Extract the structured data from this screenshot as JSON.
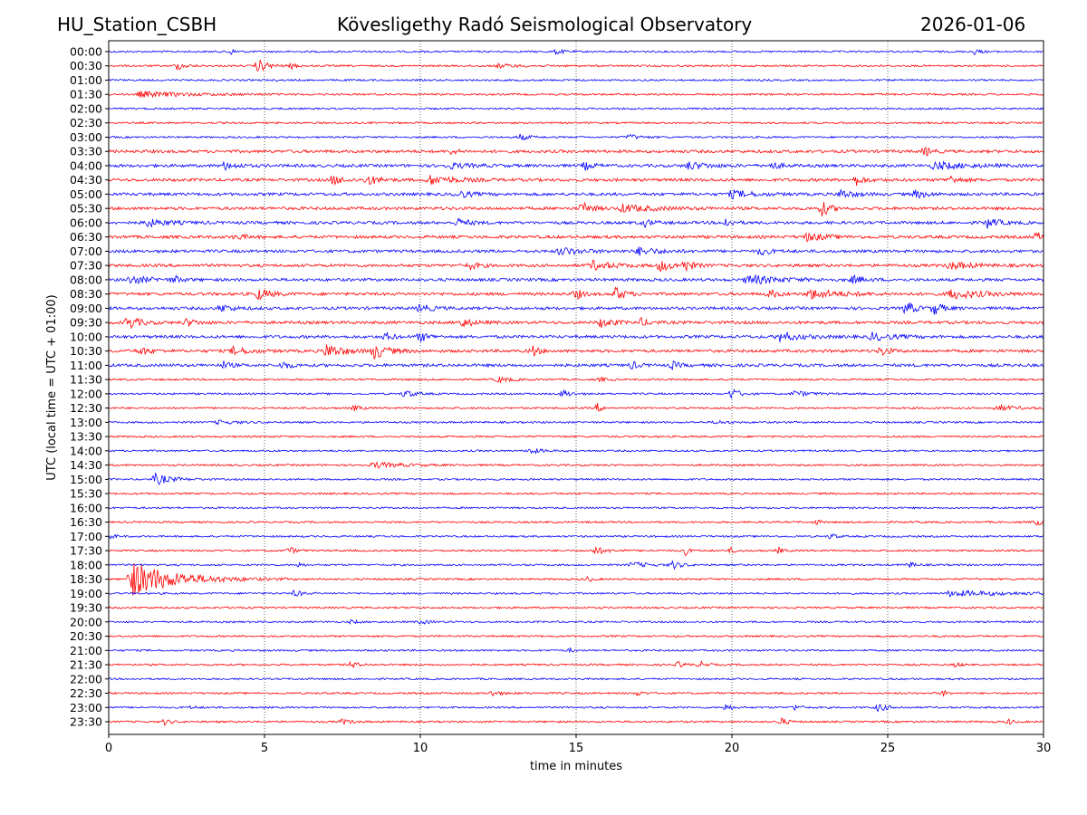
{
  "header": {
    "station": "HU_Station_CSBH",
    "observatory": "Kövesligethy Radó Seismological Observatory",
    "date": "2026-01-06"
  },
  "chart_data": {
    "type": "line",
    "title": "Kövesligethy Radó Seismological Observatory",
    "xlabel": "time in minutes",
    "ylabel": "UTC (local time = UTC + 01:00)",
    "xlim": [
      0,
      30
    ],
    "xticks": [
      "0",
      "5",
      "10",
      "15",
      "20",
      "25",
      "30"
    ],
    "grid": "vertical dotted at x ticks",
    "row_labels": [
      "00:00",
      "00:30",
      "01:00",
      "01:30",
      "02:00",
      "02:30",
      "03:00",
      "03:30",
      "04:00",
      "04:30",
      "05:00",
      "05:30",
      "06:00",
      "06:30",
      "07:00",
      "07:30",
      "08:00",
      "08:30",
      "09:00",
      "09:30",
      "10:00",
      "10:30",
      "11:00",
      "11:30",
      "12:00",
      "12:30",
      "13:00",
      "13:30",
      "14:00",
      "14:30",
      "15:00",
      "15:30",
      "16:00",
      "16:30",
      "17:00",
      "17:30",
      "18:00",
      "18:30",
      "19:00",
      "19:30",
      "20:00",
      "20:30",
      "21:00",
      "21:30",
      "22:00",
      "22:30",
      "23:00",
      "23:30"
    ],
    "series_colors": [
      "#0000ff",
      "#ff0000"
    ],
    "events": [
      [
        0,
        3.9,
        3,
        0.3
      ],
      [
        0,
        14.4,
        3,
        0.3
      ],
      [
        0,
        27.8,
        3,
        0.3
      ],
      [
        1,
        2.2,
        4,
        0.4
      ],
      [
        1,
        4.8,
        7,
        0.5
      ],
      [
        1,
        5.9,
        3,
        0.2
      ],
      [
        1,
        12.5,
        2,
        1
      ],
      [
        3,
        1.0,
        3,
        2.5
      ],
      [
        6,
        13.2,
        3,
        0.5
      ],
      [
        6,
        16.7,
        3,
        0.5
      ],
      [
        7,
        11,
        3,
        0.3
      ],
      [
        7,
        26.2,
        5,
        0.3
      ],
      [
        8,
        3.7,
        4,
        0.6
      ],
      [
        8,
        10.9,
        3,
        1
      ],
      [
        8,
        15.3,
        4,
        0.4
      ],
      [
        8,
        18.6,
        4,
        1
      ],
      [
        8,
        21.3,
        4,
        0.4
      ],
      [
        8,
        26.5,
        4,
        1.5
      ],
      [
        9,
        7.2,
        5,
        0.5
      ],
      [
        9,
        8.3,
        5,
        0.6
      ],
      [
        9,
        10.3,
        5,
        1.2
      ],
      [
        9,
        24,
        5,
        0.4
      ],
      [
        9,
        27,
        4,
        0.5
      ],
      [
        10,
        11.2,
        4,
        0.6
      ],
      [
        10,
        20,
        4,
        1
      ],
      [
        10,
        23.5,
        5,
        0.6
      ],
      [
        10,
        25.9,
        4,
        0.6
      ],
      [
        11,
        15.2,
        6,
        0.5
      ],
      [
        11,
        22.9,
        8,
        0.4
      ],
      [
        11,
        16.5,
        4,
        1.5
      ],
      [
        12,
        1.2,
        4,
        1
      ],
      [
        12,
        11.2,
        4,
        0.6
      ],
      [
        12,
        17.2,
        4,
        0.4
      ],
      [
        12,
        19.8,
        5,
        0.3
      ],
      [
        12,
        28.2,
        5,
        0.6
      ],
      [
        13,
        4.1,
        3,
        0.5
      ],
      [
        13,
        22.4,
        4,
        1
      ],
      [
        13,
        29.8,
        5,
        0.3
      ],
      [
        14,
        14.5,
        4,
        1
      ],
      [
        14,
        17,
        4,
        1
      ],
      [
        14,
        20.9,
        4,
        0.5
      ],
      [
        15,
        11.6,
        4,
        0.4
      ],
      [
        15,
        15.5,
        5,
        1
      ],
      [
        15,
        17.7,
        6,
        0.6
      ],
      [
        15,
        18.5,
        6,
        0.4
      ],
      [
        15,
        27,
        4,
        1
      ],
      [
        16,
        0.7,
        4,
        1
      ],
      [
        16,
        2.1,
        4,
        0.3
      ],
      [
        16,
        20.5,
        5,
        1.5
      ],
      [
        16,
        23.9,
        4,
        0.5
      ],
      [
        17,
        4.8,
        6,
        0.6
      ],
      [
        17,
        15,
        6,
        0.3
      ],
      [
        17,
        16.3,
        8,
        0.4
      ],
      [
        17,
        21.2,
        5,
        0.4
      ],
      [
        17,
        22.5,
        5,
        1.5
      ],
      [
        17,
        27,
        5,
        1.5
      ],
      [
        18,
        3.6,
        4,
        0.6
      ],
      [
        18,
        10,
        4,
        0.6
      ],
      [
        18,
        25.6,
        8,
        0.4
      ],
      [
        18,
        26.5,
        7,
        0.4
      ],
      [
        19,
        0.6,
        7,
        0.6
      ],
      [
        19,
        2.5,
        4,
        0.5
      ],
      [
        19,
        11.3,
        5,
        0.6
      ],
      [
        19,
        15.8,
        5,
        0.6
      ],
      [
        19,
        17.1,
        4,
        0.4
      ],
      [
        20,
        8.9,
        4,
        0.4
      ],
      [
        20,
        10,
        5,
        0.4
      ],
      [
        20,
        21.5,
        5,
        1
      ],
      [
        20,
        24.5,
        4,
        1
      ],
      [
        21,
        1,
        4,
        0.5
      ],
      [
        21,
        4,
        4,
        0.8
      ],
      [
        21,
        7,
        8,
        0.8
      ],
      [
        21,
        8.5,
        8,
        0.7
      ],
      [
        21,
        13.6,
        6,
        0.3
      ],
      [
        21,
        24.8,
        5,
        0.4
      ],
      [
        22,
        3.7,
        4,
        0.3
      ],
      [
        22,
        5.6,
        4,
        0.4
      ],
      [
        22,
        16.8,
        4,
        0.3
      ],
      [
        22,
        18.1,
        4,
        0.3
      ],
      [
        23,
        12.5,
        3,
        0.6
      ],
      [
        23,
        15.8,
        2,
        0.3
      ],
      [
        24,
        9.5,
        4,
        0.5
      ],
      [
        24,
        14.6,
        4,
        0.4
      ],
      [
        24,
        20,
        6,
        0.4
      ],
      [
        24,
        22,
        3,
        0.8
      ],
      [
        25,
        7.9,
        3,
        0.3
      ],
      [
        25,
        15.7,
        5,
        0.2
      ],
      [
        25,
        28.5,
        3,
        1
      ],
      [
        26,
        3.5,
        2,
        1
      ],
      [
        26,
        19.5,
        2,
        0.5
      ],
      [
        28,
        13.5,
        3,
        0.6
      ],
      [
        29,
        8.5,
        3,
        1.5
      ],
      [
        30,
        1.5,
        6,
        0.8
      ],
      [
        33,
        22.7,
        3,
        0.2
      ],
      [
        33,
        29.8,
        4,
        0.2
      ],
      [
        34,
        0.1,
        3,
        0.2
      ],
      [
        34,
        23.2,
        4,
        0.2
      ],
      [
        35,
        5.8,
        4,
        0.3
      ],
      [
        35,
        15.6,
        4,
        0.6
      ],
      [
        35,
        18.5,
        5,
        0.2
      ],
      [
        35,
        20,
        3,
        0.2
      ],
      [
        35,
        21.5,
        3,
        0.2
      ],
      [
        36,
        6.1,
        3,
        0.2
      ],
      [
        36,
        16.8,
        3,
        0.8
      ],
      [
        36,
        18.1,
        4,
        0.4
      ],
      [
        36,
        25.7,
        3,
        0.3
      ],
      [
        37,
        0.7,
        20,
        2.2
      ],
      [
        37,
        15.4,
        3,
        0.2
      ],
      [
        38,
        6,
        4,
        0.3
      ],
      [
        38,
        27,
        3,
        3
      ],
      [
        40,
        10,
        2,
        0.5
      ],
      [
        40,
        7.8,
        2,
        0.3
      ],
      [
        42,
        14.8,
        2,
        0.2
      ],
      [
        43,
        7.8,
        4,
        0.3
      ],
      [
        43,
        18.3,
        3,
        0.3
      ],
      [
        43,
        19,
        3,
        0.3
      ],
      [
        43,
        27.2,
        3,
        0.2
      ],
      [
        45,
        12.3,
        3,
        0.4
      ],
      [
        45,
        17,
        3,
        0.2
      ],
      [
        45,
        26.8,
        3,
        0.2
      ],
      [
        46,
        2.7,
        2,
        0.2
      ],
      [
        46,
        19.8,
        4,
        0.3
      ],
      [
        46,
        22,
        3,
        0.3
      ],
      [
        46,
        24.7,
        4,
        0.5
      ],
      [
        47,
        1.8,
        3,
        0.3
      ],
      [
        47,
        7.5,
        3,
        0.4
      ],
      [
        47,
        21.6,
        4,
        0.3
      ],
      [
        47,
        28.9,
        3,
        0.2
      ]
    ]
  }
}
